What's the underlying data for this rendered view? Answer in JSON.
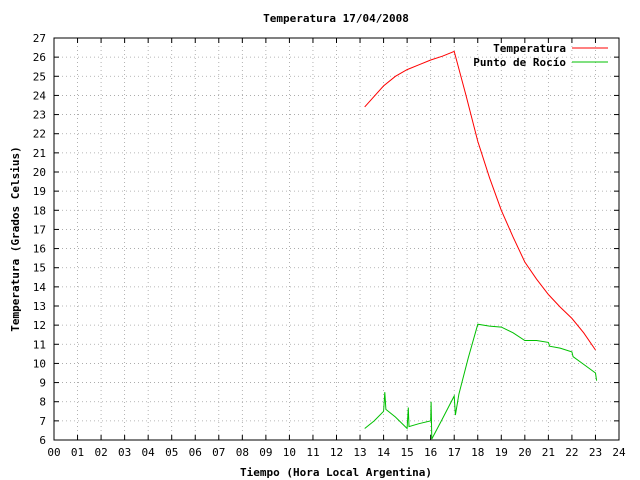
{
  "chart_data": {
    "type": "line",
    "title": "Temperatura 17/04/2008",
    "xlabel": "Tiempo (Hora Local Argentina)",
    "ylabel": "Temperatura (Grados Celsius)",
    "xlim": [
      0,
      24
    ],
    "ylim": [
      6,
      27
    ],
    "x_tick_labels": [
      "00",
      "01",
      "02",
      "03",
      "04",
      "05",
      "06",
      "07",
      "08",
      "09",
      "10",
      "11",
      "12",
      "13",
      "14",
      "15",
      "16",
      "17",
      "18",
      "19",
      "20",
      "21",
      "22",
      "23",
      "24"
    ],
    "y_tick_labels": [
      "6",
      "7",
      "8",
      "9",
      "10",
      "11",
      "12",
      "13",
      "14",
      "15",
      "16",
      "17",
      "18",
      "19",
      "20",
      "21",
      "22",
      "23",
      "24",
      "25",
      "26",
      "27"
    ],
    "grid": true,
    "legend_position": "top-right",
    "series": [
      {
        "name": "Temperatura",
        "color": "#ff0000",
        "points": [
          [
            13.2,
            23.4
          ],
          [
            14.0,
            24.5
          ],
          [
            14.5,
            25.0
          ],
          [
            15.0,
            25.35
          ],
          [
            15.5,
            25.6
          ],
          [
            16.0,
            25.85
          ],
          [
            16.5,
            26.05
          ],
          [
            17.0,
            26.3
          ],
          [
            17.5,
            24.0
          ],
          [
            18.0,
            21.6
          ],
          [
            18.5,
            19.7
          ],
          [
            19.0,
            18.0
          ],
          [
            19.5,
            16.6
          ],
          [
            20.0,
            15.3
          ],
          [
            20.5,
            14.4
          ],
          [
            21.0,
            13.6
          ],
          [
            21.5,
            12.95
          ],
          [
            22.0,
            12.35
          ],
          [
            22.5,
            11.6
          ],
          [
            23.0,
            10.7
          ]
        ]
      },
      {
        "name": "Punto de Rocío",
        "color": "#00c000",
        "points": [
          [
            13.2,
            6.6
          ],
          [
            13.6,
            7.0
          ],
          [
            14.0,
            7.5
          ],
          [
            14.05,
            8.5
          ],
          [
            14.1,
            7.6
          ],
          [
            14.5,
            7.2
          ],
          [
            15.0,
            6.6
          ],
          [
            15.05,
            7.7
          ],
          [
            15.08,
            6.7
          ],
          [
            15.5,
            6.85
          ],
          [
            16.0,
            7.0
          ],
          [
            16.02,
            8.0
          ],
          [
            16.05,
            6.05
          ],
          [
            16.5,
            7.1
          ],
          [
            17.0,
            8.3
          ],
          [
            17.05,
            7.3
          ],
          [
            17.2,
            8.4
          ],
          [
            17.6,
            10.3
          ],
          [
            18.0,
            12.05
          ],
          [
            18.5,
            11.95
          ],
          [
            19.0,
            11.9
          ],
          [
            19.5,
            11.6
          ],
          [
            20.0,
            11.2
          ],
          [
            20.5,
            11.2
          ],
          [
            21.0,
            11.1
          ],
          [
            21.05,
            10.9
          ],
          [
            21.5,
            10.8
          ],
          [
            22.0,
            10.6
          ],
          [
            22.05,
            10.35
          ],
          [
            22.5,
            9.95
          ],
          [
            23.0,
            9.5
          ],
          [
            23.05,
            9.1
          ]
        ]
      }
    ]
  }
}
